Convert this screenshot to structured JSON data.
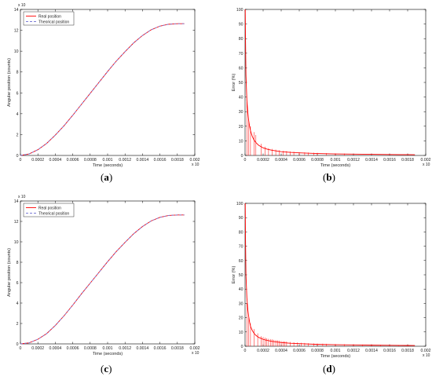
{
  "captions": {
    "a": {
      "open": "(",
      "letter": "a",
      "close": ")"
    },
    "b": {
      "open": "(",
      "letter": "b",
      "close": ")"
    },
    "c": {
      "open": "(",
      "letter": "c",
      "close": ")"
    },
    "d": {
      "open": "(",
      "letter": "d",
      "close": ")"
    }
  },
  "colors": {
    "real": "#ff0000",
    "theoretical": "#7b7bd6",
    "axis": "#000000",
    "text": "#222222"
  },
  "chart_data": [
    {
      "id": "a",
      "type": "line",
      "xlabel": "Time (seconds)",
      "ylabel": "Angular position (counts)",
      "y_exponent": "x 10",
      "x_exponent": "x 10",
      "xlim": [
        0,
        0.002
      ],
      "ylim": [
        0,
        14
      ],
      "xticks": [
        "0",
        "0.0002",
        "0.0004",
        "0.0006",
        "0.0008",
        "0.001",
        "0.0012",
        "0.0014",
        "0.0016",
        "0.0018",
        "0.002"
      ],
      "yticks": [
        "0",
        "2",
        "4",
        "6",
        "8",
        "10",
        "12",
        "14"
      ],
      "legend": {
        "position": "top-left"
      },
      "series": [
        {
          "name": "Real position",
          "style": "solid",
          "x": [
            0,
            0.0001,
            0.0002,
            0.0003,
            0.0004,
            0.0005,
            0.0006,
            0.0007,
            0.0008,
            0.0009,
            0.001,
            0.0011,
            0.0012,
            0.0013,
            0.0014,
            0.0015,
            0.0016,
            0.0017,
            0.0018,
            0.00188
          ],
          "y": [
            0,
            0.15,
            0.55,
            1.15,
            1.95,
            2.85,
            3.85,
            4.9,
            5.95,
            7.0,
            8.05,
            9.05,
            9.95,
            10.8,
            11.5,
            12.05,
            12.4,
            12.58,
            12.63,
            12.63
          ]
        },
        {
          "name": "Theorical position",
          "style": "dashed",
          "x": [
            0,
            0.0001,
            0.0002,
            0.0003,
            0.0004,
            0.0005,
            0.0006,
            0.0007,
            0.0008,
            0.0009,
            0.001,
            0.0011,
            0.0012,
            0.0013,
            0.0014,
            0.0015,
            0.0016,
            0.0017,
            0.0018,
            0.00188
          ],
          "y": [
            0,
            0.15,
            0.55,
            1.15,
            1.95,
            2.85,
            3.85,
            4.9,
            5.95,
            7.0,
            8.05,
            9.05,
            9.95,
            10.8,
            11.5,
            12.05,
            12.4,
            12.58,
            12.63,
            12.63
          ]
        }
      ]
    },
    {
      "id": "b",
      "type": "line",
      "xlabel": "Time (seconds)",
      "ylabel": "Error (%)",
      "x_exponent": "x 10",
      "xlim": [
        0,
        0.002
      ],
      "ylim": [
        0,
        100
      ],
      "xticks": [
        "0",
        "0.0002",
        "0.0004",
        "0.0006",
        "0.0008",
        "0.001",
        "0.0012",
        "0.0014",
        "0.0016",
        "0.0018",
        "0.002"
      ],
      "yticks": [
        "0",
        "10",
        "20",
        "30",
        "40",
        "50",
        "60",
        "70",
        "80",
        "90",
        "100"
      ],
      "series": [
        {
          "name": "Error",
          "x": [
            2e-06,
            5e-06,
            1e-05,
            2e-05,
            3e-05,
            4e-05,
            5e-05,
            6e-05,
            8e-05,
            0.0001,
            0.00012,
            0.00015,
            0.0002,
            0.00025,
            0.0003,
            0.0004,
            0.0005,
            0.0006,
            0.0008,
            0.001,
            0.0012,
            0.0014,
            0.0016,
            0.0018,
            0.00188
          ],
          "y": [
            100,
            80,
            55,
            38,
            30,
            24,
            20,
            17,
            13,
            10.5,
            8.8,
            7,
            5.2,
            4.2,
            3.5,
            2.6,
            2.1,
            1.8,
            1.3,
            1.05,
            0.9,
            0.75,
            0.65,
            0.55,
            0.5
          ]
        }
      ],
      "spikes": {
        "x": [
          2e-05,
          4e-05,
          6e-05,
          0.0001,
          0.00012,
          0.00018,
          0.00022,
          0.00026,
          0.0003,
          0.00034,
          0.00038,
          0.00042,
          0.00046,
          0.0005,
          0.00054,
          0.0006,
          0.00066,
          0.0007,
          0.00076,
          0.0008,
          0.0009,
          0.001,
          0.0011
        ],
        "y": [
          38,
          25,
          20,
          16,
          14,
          8,
          6,
          5,
          4.5,
          4,
          3.5,
          3.2,
          3,
          2.8,
          2.6,
          2.3,
          2.1,
          2,
          1.9,
          1.8,
          1.6,
          1.4,
          1.3
        ]
      }
    },
    {
      "id": "c",
      "type": "line",
      "xlabel": "Time (seconds)",
      "ylabel": "Angular position (counts)",
      "y_exponent": "x 10",
      "x_exponent": "x 10",
      "xlim": [
        0,
        0.002
      ],
      "ylim": [
        0,
        14
      ],
      "xticks": [
        "0",
        "0.0002",
        "0.0004",
        "0.0006",
        "0.0008",
        "0.001",
        "0.0012",
        "0.0014",
        "0.0016",
        "0.0018",
        "0.002"
      ],
      "yticks": [
        "0",
        "2",
        "4",
        "6",
        "8",
        "10",
        "12",
        "14"
      ],
      "legend": {
        "position": "top-left"
      },
      "series": [
        {
          "name": "Real position",
          "style": "solid",
          "x": [
            0,
            0.0001,
            0.0002,
            0.0003,
            0.0004,
            0.0005,
            0.0006,
            0.0007,
            0.0008,
            0.0009,
            0.001,
            0.0011,
            0.0012,
            0.0013,
            0.0014,
            0.0015,
            0.0016,
            0.0017,
            0.0018,
            0.00188
          ],
          "y": [
            0,
            0.1,
            0.45,
            1.0,
            1.8,
            2.75,
            3.8,
            4.9,
            5.95,
            7.0,
            8.05,
            9.05,
            9.95,
            10.8,
            11.5,
            12.05,
            12.4,
            12.58,
            12.63,
            12.63
          ]
        },
        {
          "name": "Theorical position",
          "style": "dashed",
          "x": [
            0,
            0.0001,
            0.0002,
            0.0003,
            0.0004,
            0.0005,
            0.0006,
            0.0007,
            0.0008,
            0.0009,
            0.001,
            0.0011,
            0.0012,
            0.0013,
            0.0014,
            0.0015,
            0.0016,
            0.0017,
            0.0018,
            0.00188
          ],
          "y": [
            0,
            0.1,
            0.45,
            1.0,
            1.8,
            2.75,
            3.8,
            4.9,
            5.95,
            7.0,
            8.05,
            9.05,
            9.95,
            10.8,
            11.5,
            12.05,
            12.4,
            12.58,
            12.63,
            12.63
          ]
        }
      ]
    },
    {
      "id": "d",
      "type": "line",
      "xlabel": "Time (seconds)",
      "ylabel": "Error (%)",
      "x_exponent": "x 10",
      "xlim": [
        0,
        0.002
      ],
      "ylim": [
        0,
        100
      ],
      "xticks": [
        "0",
        "0.0002",
        "0.0004",
        "0.0006",
        "0.0008",
        "0.001",
        "0.0012",
        "0.0014",
        "0.0016",
        "0.0018",
        "0.002"
      ],
      "yticks": [
        "0",
        "10",
        "20",
        "30",
        "40",
        "50",
        "60",
        "70",
        "80",
        "90",
        "100"
      ],
      "series": [
        {
          "name": "Error",
          "x": [
            2e-06,
            5e-06,
            1e-05,
            2e-05,
            3e-05,
            4e-05,
            5e-05,
            6e-05,
            8e-05,
            0.0001,
            0.00012,
            0.00015,
            0.0002,
            0.00025,
            0.0003,
            0.0004,
            0.0005,
            0.0006,
            0.0008,
            0.001,
            0.0012,
            0.0014,
            0.0016,
            0.0018,
            0.00188
          ],
          "y": [
            100,
            75,
            50,
            34,
            26,
            21,
            17,
            14,
            11,
            9,
            7.6,
            6.2,
            4.8,
            4,
            3.4,
            2.6,
            2.1,
            1.8,
            1.3,
            1.05,
            0.9,
            0.75,
            0.65,
            0.55,
            0.5
          ]
        }
      ],
      "spikes": {
        "x": [
          2e-05,
          4e-05,
          6e-05,
          0.0001,
          0.00014,
          0.00018,
          0.0002,
          0.00022,
          0.00024,
          0.00026,
          0.00028,
          0.0003,
          0.00032,
          0.00034,
          0.00036,
          0.00038,
          0.0004,
          0.00042,
          0.00044,
          0.00046,
          0.0005,
          0.00054,
          0.00058,
          0.00062,
          0.00066,
          0.0007,
          0.00076,
          0.0008,
          0.00086,
          0.0009,
          0.001,
          0.0011,
          0.0012,
          0.0013,
          0.0014,
          0.0015,
          0.0016,
          0.0017,
          0.0018
        ],
        "y": [
          30,
          20,
          16,
          12,
          9,
          7,
          6.5,
          6,
          5.6,
          5.2,
          5,
          4.8,
          4.5,
          4.3,
          4.1,
          3.9,
          3.7,
          3.5,
          3.4,
          3.3,
          3,
          2.8,
          2.6,
          2.4,
          2.3,
          2.1,
          2,
          1.9,
          1.8,
          1.7,
          1.5,
          1.4,
          1.3,
          1.2,
          1.1,
          1.0,
          0.9,
          0.85,
          0.8
        ]
      }
    }
  ]
}
